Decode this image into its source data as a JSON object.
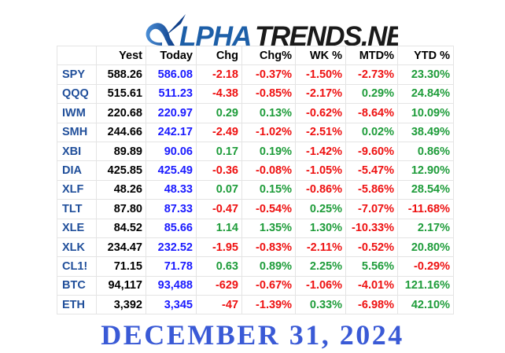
{
  "brand": {
    "logo_text": "ALPHATRENDS.NET"
  },
  "headers": [
    "",
    "Yest",
    "Today",
    "Chg",
    "Chg%",
    "WK %",
    "MTD%",
    "YTD %"
  ],
  "rows": [
    {
      "sym": "SPY",
      "yest": "588.26",
      "today": "586.08",
      "chg": "-2.18",
      "chgp": "-0.37%",
      "wk": "-1.50%",
      "mtd": "-2.73%",
      "ytd": "23.30%"
    },
    {
      "sym": "QQQ",
      "yest": "515.61",
      "today": "511.23",
      "chg": "-4.38",
      "chgp": "-0.85%",
      "wk": "-2.17%",
      "mtd": "0.29%",
      "ytd": "24.84%"
    },
    {
      "sym": "IWM",
      "yest": "220.68",
      "today": "220.97",
      "chg": "0.29",
      "chgp": "0.13%",
      "wk": "-0.62%",
      "mtd": "-8.64%",
      "ytd": "10.09%"
    },
    {
      "sym": "SMH",
      "yest": "244.66",
      "today": "242.17",
      "chg": "-2.49",
      "chgp": "-1.02%",
      "wk": "-2.51%",
      "mtd": "0.02%",
      "ytd": "38.49%"
    },
    {
      "sym": "XBI",
      "yest": "89.89",
      "today": "90.06",
      "chg": "0.17",
      "chgp": "0.19%",
      "wk": "-1.42%",
      "mtd": "-9.60%",
      "ytd": "0.86%"
    },
    {
      "sym": "DIA",
      "yest": "425.85",
      "today": "425.49",
      "chg": "-0.36",
      "chgp": "-0.08%",
      "wk": "-1.05%",
      "mtd": "-5.47%",
      "ytd": "12.90%"
    },
    {
      "sym": "XLF",
      "yest": "48.26",
      "today": "48.33",
      "chg": "0.07",
      "chgp": "0.15%",
      "wk": "-0.86%",
      "mtd": "-5.86%",
      "ytd": "28.54%"
    },
    {
      "sym": "TLT",
      "yest": "87.80",
      "today": "87.33",
      "chg": "-0.47",
      "chgp": "-0.54%",
      "wk": "0.25%",
      "mtd": "-7.07%",
      "ytd": "-11.68%"
    },
    {
      "sym": "XLE",
      "yest": "84.52",
      "today": "85.66",
      "chg": "1.14",
      "chgp": "1.35%",
      "wk": "1.30%",
      "mtd": "-10.33%",
      "ytd": "2.17%"
    },
    {
      "sym": "XLK",
      "yest": "234.47",
      "today": "232.52",
      "chg": "-1.95",
      "chgp": "-0.83%",
      "wk": "-2.11%",
      "mtd": "-0.52%",
      "ytd": "20.80%"
    },
    {
      "sym": "CL1!",
      "yest": "71.15",
      "today": "71.78",
      "chg": "0.63",
      "chgp": "0.89%",
      "wk": "2.25%",
      "mtd": "5.56%",
      "ytd": "-0.29%"
    },
    {
      "sym": "BTC",
      "yest": "94,117",
      "today": "93,488",
      "chg": "-629",
      "chgp": "-0.67%",
      "wk": "-1.06%",
      "mtd": "-4.01%",
      "ytd": "121.16%"
    },
    {
      "sym": "ETH",
      "yest": "3,392",
      "today": "3,345",
      "chg": "-47",
      "chgp": "-1.39%",
      "wk": "0.33%",
      "mtd": "-6.98%",
      "ytd": "42.10%"
    }
  ],
  "footer_date": "DECEMBER 31, 2024",
  "colors": {
    "symbol": "#1f4e9a",
    "today": "#1a1aff",
    "positive": "#1e9c3a",
    "negative": "#ee1111",
    "date": "#3a5ad6",
    "logo_blue": "#1d5fa8",
    "logo_dark": "#1a1a1a"
  }
}
